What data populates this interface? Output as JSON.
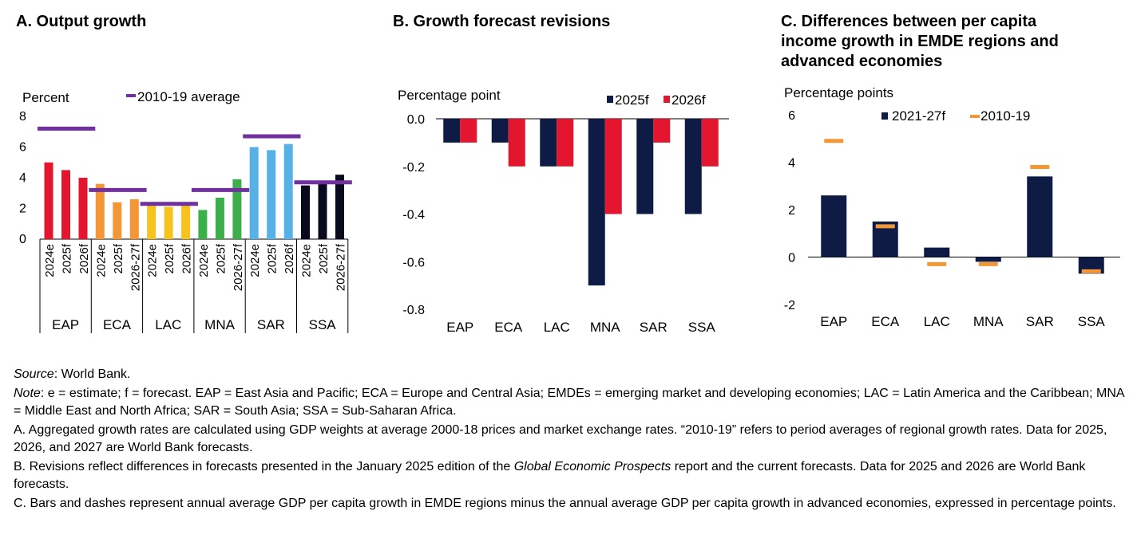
{
  "panels": {
    "a": {
      "title": "A. Output growth"
    },
    "b": {
      "title": "B. Growth forecast revisions"
    },
    "c": {
      "title_lines": [
        "C. Differences between per capita",
        "income growth in EMDE regions and",
        "advanced economies"
      ]
    }
  },
  "chart_data": [
    {
      "id": "A",
      "type": "bar",
      "title": "A. Output growth",
      "ylabel": "Percent",
      "ylim": [
        0,
        8
      ],
      "yticks": [
        0,
        2,
        4,
        6,
        8
      ],
      "legend": [
        {
          "name": "2010-19 average",
          "color": "#7030A0",
          "marker": "dash"
        }
      ],
      "groups": [
        {
          "region": "EAP",
          "color": "#E4152E",
          "periods": [
            "2024e",
            "2025f",
            "2026f"
          ],
          "values": [
            5.0,
            4.5,
            4.0
          ],
          "avg_2010_19": 7.2
        },
        {
          "region": "ECA",
          "color": "#F39635",
          "periods": [
            "2024e",
            "2025f",
            "2026-27f"
          ],
          "values": [
            3.6,
            2.4,
            2.6
          ],
          "avg_2010_19": 3.2
        },
        {
          "region": "LAC",
          "color": "#F6C21B",
          "periods": [
            "2024e",
            "2025f",
            "2026f"
          ],
          "values": [
            2.2,
            2.1,
            2.4
          ],
          "avg_2010_19": 2.3
        },
        {
          "region": "MNA",
          "color": "#3DAF4A",
          "periods": [
            "2024e",
            "2025f",
            "2026-27f"
          ],
          "values": [
            1.9,
            2.7,
            3.9
          ],
          "avg_2010_19": 3.2
        },
        {
          "region": "SAR",
          "color": "#55B1E6",
          "periods": [
            "2024e",
            "2025f",
            "2026f"
          ],
          "values": [
            6.0,
            5.8,
            6.2
          ],
          "avg_2010_19": 6.7
        },
        {
          "region": "SSA",
          "color": "#0A0A1E",
          "periods": [
            "2024e",
            "2025f",
            "2026-27f"
          ],
          "values": [
            3.5,
            3.6,
            4.2
          ],
          "avg_2010_19": 3.7
        }
      ]
    },
    {
      "id": "B",
      "type": "bar",
      "title": "B. Growth forecast revisions",
      "ylabel": "Percentage point",
      "ylim": [
        -0.8,
        0
      ],
      "yticks": [
        0.0,
        -0.2,
        -0.4,
        -0.6,
        -0.8
      ],
      "ytick_labels": [
        "0.0",
        "-0.2",
        "-0.4",
        "-0.6",
        "-0.8"
      ],
      "categories": [
        "EAP",
        "ECA",
        "LAC",
        "MNA",
        "SAR",
        "SSA"
      ],
      "series": [
        {
          "name": "2025f",
          "color": "#0D1B45",
          "values": [
            -0.1,
            -0.1,
            -0.2,
            -0.7,
            -0.4,
            -0.4
          ]
        },
        {
          "name": "2026f",
          "color": "#E4152E",
          "values": [
            -0.1,
            -0.2,
            -0.2,
            -0.4,
            -0.1,
            -0.2
          ]
        }
      ]
    },
    {
      "id": "C",
      "type": "bar",
      "title": "C. Differences between per capita income growth in EMDE regions and advanced economies",
      "ylabel": "Percentage points",
      "ylim": [
        -2,
        6
      ],
      "yticks": [
        6,
        4,
        2,
        0,
        -2
      ],
      "categories": [
        "EAP",
        "ECA",
        "LAC",
        "MNA",
        "SAR",
        "SSA"
      ],
      "series": [
        {
          "name": "2021-27f",
          "color": "#0D1B45",
          "marker": "bar",
          "values": [
            2.6,
            1.5,
            0.4,
            -0.2,
            3.4,
            -0.7
          ]
        },
        {
          "name": "2010-19",
          "color": "#F39635",
          "marker": "dash",
          "values": [
            4.9,
            1.3,
            -0.3,
            -0.3,
            3.8,
            -0.6
          ]
        }
      ]
    }
  ],
  "notes": {
    "source_label": "Source",
    "source_text": ": World Bank.",
    "note_label": "Note",
    "note_text": ": e = estimate; f = forecast. EAP = East Asia and Pacific; ECA = Europe and Central Asia; EMDEs = emerging market and developing economies; LAC = Latin America and the Caribbean; MNA = Middle East and North Africa; SAR = South Asia; SSA = Sub-Saharan Africa.",
    "a_text": "A. Aggregated growth rates are calculated using GDP weights at average 2000-18 prices and market exchange rates. “2010-19” refers to period averages of regional growth rates. Data for 2025, 2026, and 2027 are World Bank forecasts.",
    "b_pre": "B. Revisions reflect differences in forecasts presented in the January 2025 edition of the ",
    "b_italic": "Global Economic Prospects",
    "b_post": " report and the current forecasts. Data for 2025 and 2026 are World Bank forecasts.",
    "c_text": "C. Bars and dashes represent annual average GDP per capita growth in EMDE regions minus the annual average GDP per capita growth in advanced economies, expressed in percentage points."
  }
}
